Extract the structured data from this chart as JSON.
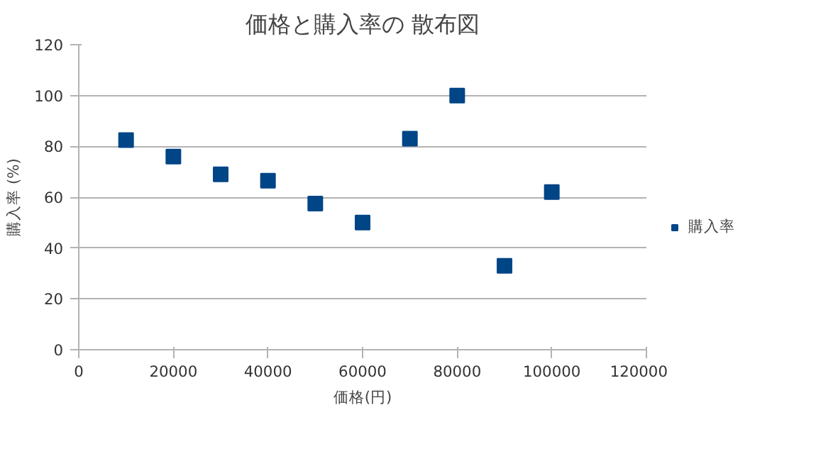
{
  "chart_data": {
    "type": "scatter",
    "title": "価格と購入率の 散布図",
    "xlabel": "価格(円)",
    "ylabel": "購入率 (%)",
    "x": [
      10000,
      20000,
      30000,
      40000,
      50000,
      60000,
      70000,
      80000,
      90000,
      100000
    ],
    "series": [
      {
        "name": "購入率",
        "color": "#004586",
        "values": [
          82.5,
          76,
          69,
          66.5,
          57.5,
          50,
          83,
          100,
          33,
          62
        ]
      }
    ],
    "xlim": [
      0,
      120000
    ],
    "xticks": [
      0,
      20000,
      40000,
      60000,
      80000,
      100000,
      120000
    ],
    "ylim": [
      0,
      120
    ],
    "yticks": [
      0,
      20,
      40,
      60,
      80,
      100,
      120
    ],
    "grid": "y",
    "legend": "right",
    "marker": "square"
  }
}
